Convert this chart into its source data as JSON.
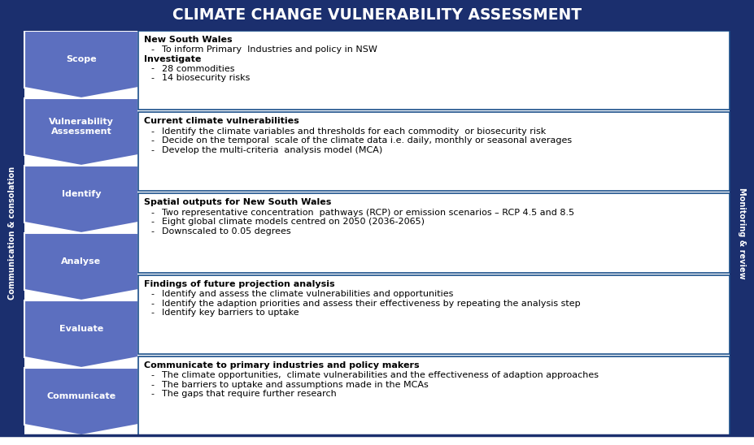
{
  "title": "CLIMATE CHANGE VULNERABILITY ASSESSMENT",
  "title_bg": "#1b2f6e",
  "title_color": "#ffffff",
  "left_label": "Communication & consolation",
  "right_label": "Monitoring & review",
  "sidebar_bg": "#1b2f6e",
  "sidebar_text_color": "#ffffff",
  "chevron_color": "#5c6fbf",
  "chevron_labels": [
    "Scope",
    "Vulnerability\nAssessment",
    "Identify",
    "Analyse",
    "Evaluate",
    "Communicate"
  ],
  "box_border_color": "#1a4f8a",
  "box_titles": [
    "New South Wales",
    "Current climate vulnerabilities",
    "Spatial outputs for New South Wales",
    "Findings of future projection analysis",
    "Communicate to primary industries and policy makers"
  ],
  "box_contents": [
    [
      {
        "type": "bullet",
        "text": "To inform Primary  Industries and policy in NSW"
      },
      {
        "type": "bold",
        "text": "Investigate"
      },
      {
        "type": "bullet",
        "text": "28 commodities"
      },
      {
        "type": "bullet",
        "text": "14 biosecurity risks"
      }
    ],
    [
      {
        "type": "bullet",
        "text": "Identify the climate variables and thresholds for each commodity  or biosecurity risk"
      },
      {
        "type": "bullet",
        "text": "Decide on the temporal  scale of the climate data i.e. daily, monthly or seasonal averages"
      },
      {
        "type": "bullet",
        "text": "Develop the multi-criteria  analysis model (MCA)"
      }
    ],
    [
      {
        "type": "bullet",
        "text": "Two representative concentration  pathways (RCP) or emission scenarios – RCP 4.5 and 8.5"
      },
      {
        "type": "bullet",
        "text": "Eight global climate models centred on 2050 (2036-2065)"
      },
      {
        "type": "bullet",
        "text": "Downscaled to 0.05 degrees"
      }
    ],
    [
      {
        "type": "bullet",
        "text": "Identify and assess the climate vulnerabilities and opportunities"
      },
      {
        "type": "bullet",
        "text": "Identify the adaption priorities and assess their effectiveness by repeating the analysis step"
      },
      {
        "type": "bullet",
        "text": "Identify key barriers to uptake"
      }
    ],
    [
      {
        "type": "bullet",
        "text": "The climate opportunities,  climate vulnerabilities and the effectiveness of adaption approaches"
      },
      {
        "type": "bullet",
        "text": "The barriers to uptake and assumptions made in the MCAs"
      },
      {
        "type": "bullet",
        "text": "The gaps that require further research"
      }
    ]
  ]
}
